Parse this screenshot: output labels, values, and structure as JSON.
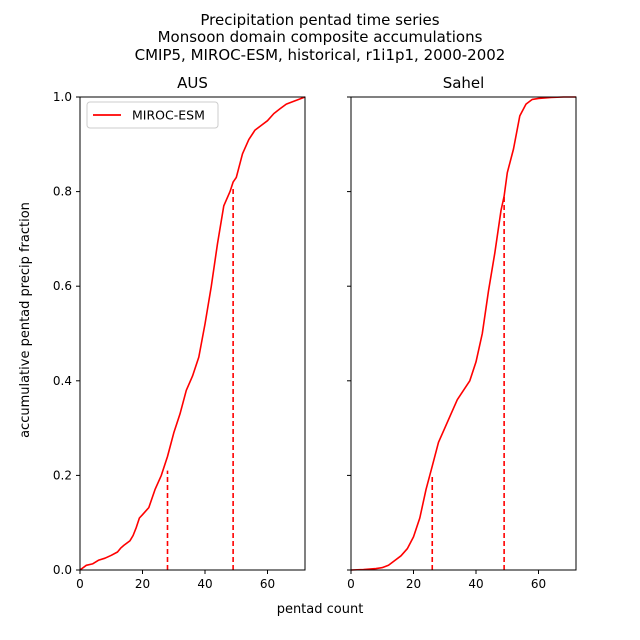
{
  "figure": {
    "title_lines": [
      "Precipitation pentad time series",
      "Monsoon domain composite accumulations",
      "CMIP5, MIROC-ESM, historical, r1i1p1, 2000-2002"
    ],
    "xlabel": "pentad count",
    "ylabel": "accumulative pentad precip fraction"
  },
  "colors": {
    "series": "#ff0000"
  },
  "chart_data": [
    {
      "type": "line",
      "title": "AUS",
      "xlim": [
        0,
        72
      ],
      "ylim": [
        0,
        1.0
      ],
      "xticks": [
        0,
        20,
        40,
        60
      ],
      "xtick_labels": [
        "0",
        "20",
        "40",
        "60"
      ],
      "yticks": [
        0.0,
        0.2,
        0.4,
        0.6,
        0.8,
        1.0
      ],
      "ytick_labels": [
        "0.0",
        "0.2",
        "0.4",
        "0.6",
        "0.8",
        "1.0"
      ],
      "show_y_tick_labels": true,
      "grid": false,
      "legend": {
        "entries": [
          "MIROC-ESM"
        ],
        "placement": "upper-left"
      },
      "series": [
        {
          "name": "MIROC-ESM",
          "x": [
            0,
            2,
            4,
            6,
            8,
            10,
            12,
            13,
            14,
            16,
            17,
            18,
            19,
            20,
            22,
            24,
            26,
            28,
            30,
            32,
            34,
            36,
            38,
            40,
            42,
            44,
            46,
            48,
            49,
            50,
            52,
            54,
            56,
            58,
            60,
            62,
            64,
            66,
            68,
            70,
            72
          ],
          "y": [
            0.0,
            0.01,
            0.013,
            0.021,
            0.025,
            0.031,
            0.038,
            0.046,
            0.052,
            0.062,
            0.073,
            0.09,
            0.11,
            0.117,
            0.132,
            0.17,
            0.2,
            0.24,
            0.29,
            0.33,
            0.38,
            0.41,
            0.45,
            0.52,
            0.6,
            0.69,
            0.77,
            0.8,
            0.82,
            0.83,
            0.88,
            0.91,
            0.93,
            0.94,
            0.95,
            0.965,
            0.975,
            0.985,
            0.99,
            0.995,
            1.0
          ]
        }
      ],
      "vlines": [
        {
          "x": 28,
          "y": 0.21
        },
        {
          "x": 49,
          "y": 0.81
        }
      ]
    },
    {
      "type": "line",
      "title": "Sahel",
      "xlim": [
        0,
        72
      ],
      "ylim": [
        0,
        1.0
      ],
      "xticks": [
        0,
        20,
        40,
        60
      ],
      "xtick_labels": [
        "0",
        "20",
        "40",
        "60"
      ],
      "yticks": [
        0.0,
        0.2,
        0.4,
        0.6,
        0.8,
        1.0
      ],
      "show_y_tick_labels": false,
      "grid": false,
      "series": [
        {
          "name": "MIROC-ESM",
          "x": [
            0,
            4,
            8,
            10,
            12,
            14,
            16,
            18,
            20,
            22,
            24,
            26,
            28,
            30,
            32,
            34,
            36,
            38,
            40,
            42,
            44,
            46,
            48,
            49,
            50,
            52,
            54,
            56,
            58,
            60,
            64,
            68,
            72
          ],
          "y": [
            0.0,
            0.001,
            0.003,
            0.005,
            0.01,
            0.02,
            0.03,
            0.045,
            0.07,
            0.11,
            0.17,
            0.22,
            0.27,
            0.3,
            0.33,
            0.36,
            0.38,
            0.4,
            0.44,
            0.5,
            0.59,
            0.67,
            0.76,
            0.79,
            0.84,
            0.89,
            0.96,
            0.985,
            0.995,
            0.997,
            0.999,
            1.0,
            1.0
          ]
        }
      ],
      "vlines": [
        {
          "x": 26,
          "y": 0.2
        },
        {
          "x": 49,
          "y": 0.79
        }
      ]
    }
  ]
}
